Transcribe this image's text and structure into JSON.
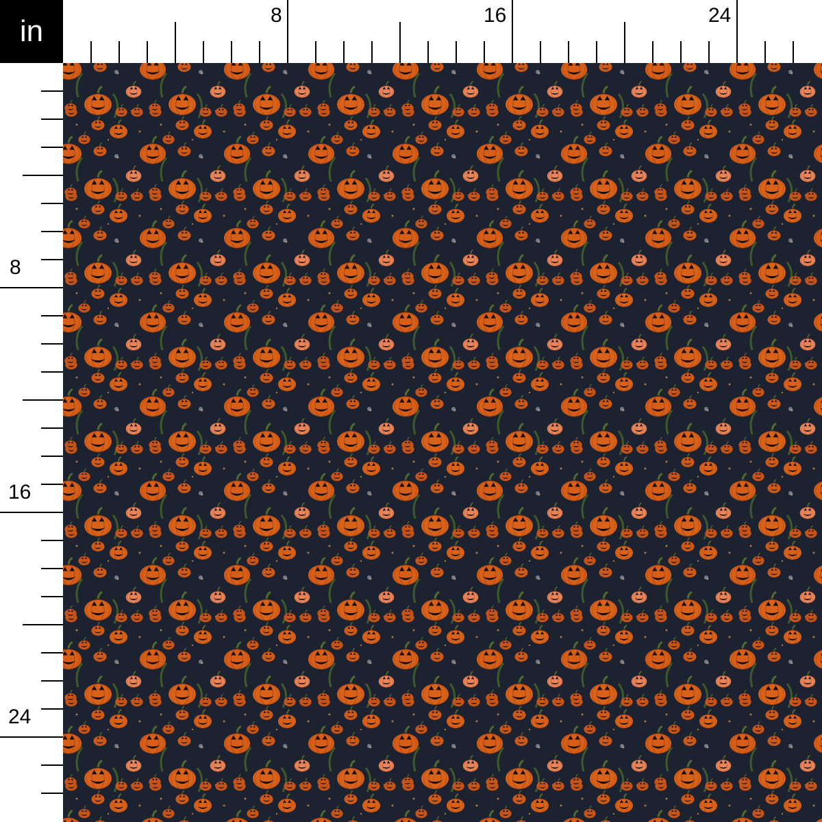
{
  "unit_label": "in",
  "top_ruler": {
    "labels": [
      "8",
      "16",
      "24"
    ],
    "max_inch": 26
  },
  "left_ruler": {
    "labels": [
      "8",
      "16",
      "24"
    ],
    "max_inch": 26
  },
  "fabric": {
    "pattern": "jack-o-lantern pumpkins",
    "colors": {
      "background": "#1d2230",
      "pumpkin": "#d9621a",
      "pumpkin_light": "#e8855a",
      "stem": "#4f6b2f",
      "face": "#140c08"
    },
    "repeat_inches": 3
  }
}
